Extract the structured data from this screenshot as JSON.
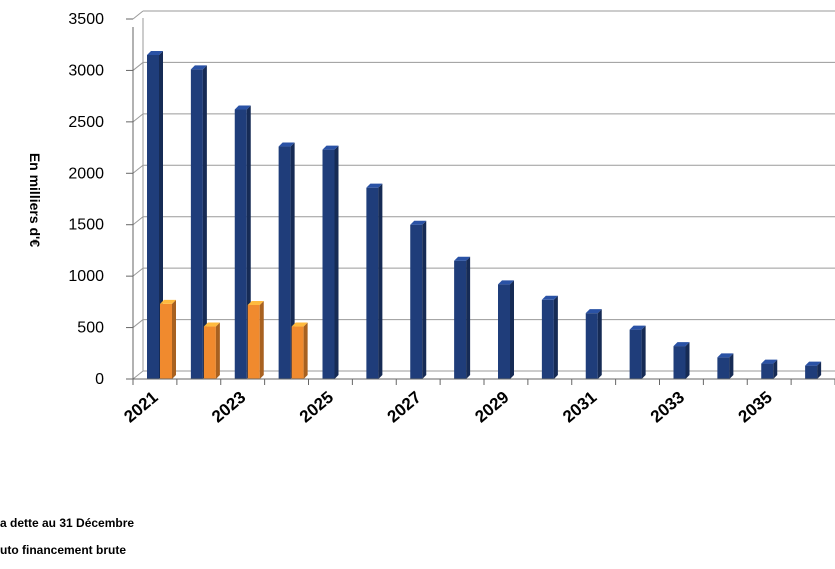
{
  "chart_data": {
    "type": "bar",
    "ylabel": "En milliers d'€",
    "ylim": [
      0,
      3500
    ],
    "yticks": [
      "0",
      "500",
      "1000",
      "1500",
      "2000",
      "2500",
      "3000",
      "3500"
    ],
    "categories": [
      "2021",
      "2022",
      "2023",
      "2024",
      "2025",
      "2026",
      "2027",
      "2028",
      "2029",
      "2030",
      "2031",
      "2032",
      "2033",
      "2034",
      "2035",
      "2036"
    ],
    "x_tick_labels": [
      "2021",
      "2023",
      "2025",
      "2027",
      "2029",
      "2031",
      "2033",
      "2035"
    ],
    "grid": true,
    "legend_position": "bottom-left",
    "series": [
      {
        "name": "a dette au 31 Décembre",
        "color": "#1f3d7a",
        "values": [
          3150,
          3010,
          2620,
          2260,
          2230,
          1860,
          1500,
          1150,
          920,
          770,
          640,
          480,
          320,
          210,
          150,
          130
        ]
      },
      {
        "name": "uto financement brute",
        "color": "#f08a2e",
        "values": [
          730,
          510,
          720,
          510,
          null,
          null,
          null,
          null,
          null,
          null,
          null,
          null,
          null,
          null,
          null,
          null
        ]
      }
    ]
  }
}
